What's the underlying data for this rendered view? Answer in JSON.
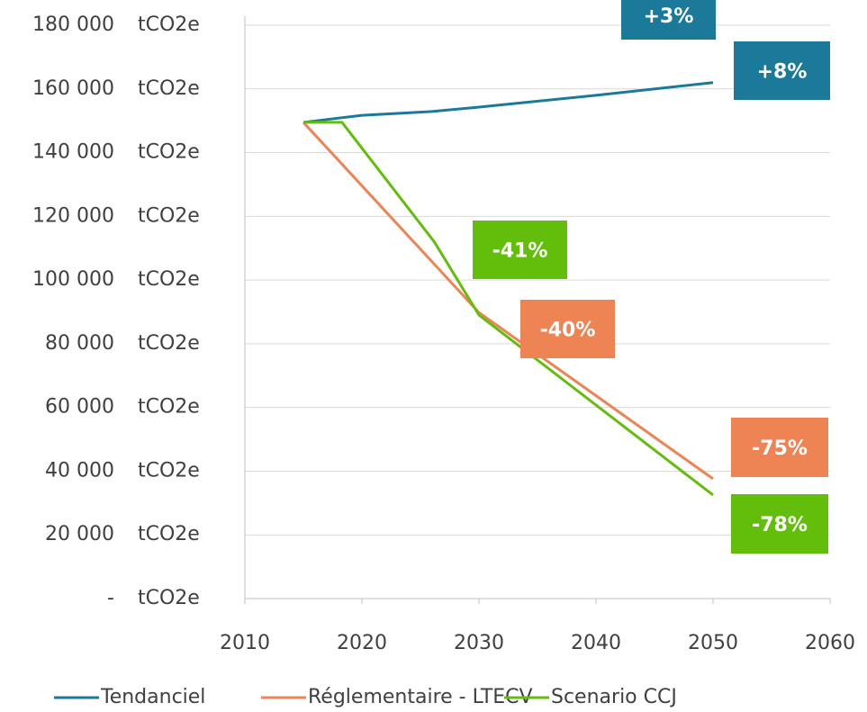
{
  "chart_data": {
    "type": "line",
    "y_unit": "tCO2e",
    "xlim": [
      2010,
      2060
    ],
    "xticks": [
      2010,
      2020,
      2030,
      2040,
      2050,
      2060
    ],
    "ylim": [
      0,
      180000
    ],
    "yticks": [
      {
        "value": 0,
        "label": "-"
      },
      {
        "value": 20000,
        "label": "20 000"
      },
      {
        "value": 40000,
        "label": "40 000"
      },
      {
        "value": 60000,
        "label": "60 000"
      },
      {
        "value": 80000,
        "label": "80 000"
      },
      {
        "value": 100000,
        "label": "100 000"
      },
      {
        "value": 120000,
        "label": "120 000"
      },
      {
        "value": 140000,
        "label": "140 000"
      },
      {
        "value": 160000,
        "label": "160 000"
      },
      {
        "value": 180000,
        "label": "180 000"
      }
    ],
    "grid": true,
    "legend": "bottom",
    "series": [
      {
        "name": "Tendanciel",
        "color": "#1b7a99",
        "x": [
          2015,
          2020,
          2026,
          2030,
          2040,
          2050
        ],
        "values": [
          149500,
          151700,
          152900,
          154300,
          158000,
          162000
        ]
      },
      {
        "name": "Réglementaire - LTECV",
        "color": "#ee8354",
        "x": [
          2015,
          2030,
          2050
        ],
        "values": [
          149500,
          89800,
          37600
        ]
      },
      {
        "name": "Scenario CCJ",
        "color": "#63be0c",
        "x": [
          2015,
          2018.3,
          2026.2,
          2030,
          2050
        ],
        "values": [
          149500,
          149500,
          111900,
          89000,
          32500
        ]
      }
    ],
    "annotations": [
      {
        "text": "+3%",
        "color": "#1b7a99"
      },
      {
        "text": "+8%",
        "color": "#1b7a99"
      },
      {
        "text": "-41%",
        "color": "#63be0c"
      },
      {
        "text": "-40%",
        "color": "#ee8354"
      },
      {
        "text": "-75%",
        "color": "#ee8354"
      },
      {
        "text": "-78%",
        "color": "#63be0c"
      }
    ]
  }
}
